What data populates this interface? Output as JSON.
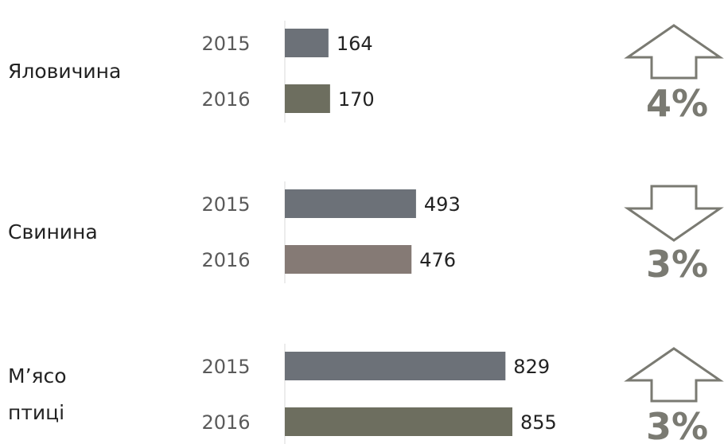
{
  "chart_data": {
    "type": "bar",
    "groups": [
      {
        "category": "Яловичина",
        "label_lines": [
          "Яловичина"
        ],
        "bars": [
          {
            "year": "2015",
            "value": 164,
            "color": "#6c7178"
          },
          {
            "year": "2016",
            "value": 170,
            "color": "#6d6e5f"
          }
        ],
        "change": {
          "direction": "up",
          "text": "4%"
        }
      },
      {
        "category": "Свинина",
        "label_lines": [
          "Свинина"
        ],
        "bars": [
          {
            "year": "2015",
            "value": 493,
            "color": "#6c7178"
          },
          {
            "year": "2016",
            "value": 476,
            "color": "#857a75"
          }
        ],
        "change": {
          "direction": "down",
          "text": "3%"
        }
      },
      {
        "category": "М’ясо птиці",
        "label_lines": [
          "М’ясо",
          "птиці"
        ],
        "bars": [
          {
            "year": "2015",
            "value": 829,
            "color": "#6c7178"
          },
          {
            "year": "2016",
            "value": 855,
            "color": "#6d6e5f"
          }
        ],
        "change": {
          "direction": "up",
          "text": "3%"
        }
      }
    ],
    "grid": false,
    "legend": "none"
  },
  "colors": {
    "axis_text": "#5a5a5a",
    "arrow_stroke": "#7a7a72",
    "percent_text": "#7a7a72",
    "category_text": "#222222",
    "axis_line": "#d9d9d9"
  }
}
